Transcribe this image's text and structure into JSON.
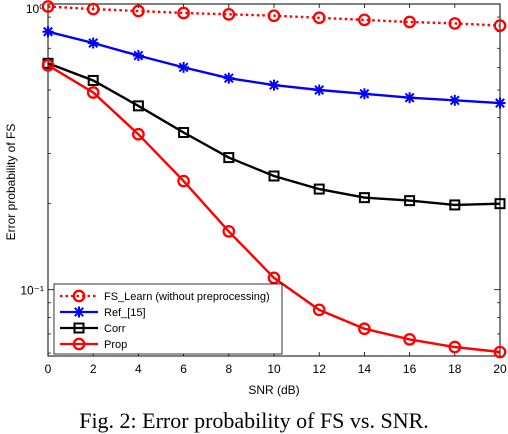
{
  "chart_data": {
    "type": "line",
    "xlabel": "SNR (dB)",
    "ylabel": "Error probability of FS",
    "x": [
      0,
      2,
      4,
      6,
      8,
      10,
      12,
      14,
      16,
      18,
      20
    ],
    "xticks": [
      "0",
      "2",
      "4",
      "6",
      "8",
      "10",
      "12",
      "14",
      "16",
      "18",
      "20"
    ],
    "yticks": [
      {
        "value": 1,
        "label": "10⁰"
      },
      {
        "value": 0.1,
        "label": "10⁻¹"
      }
    ],
    "xlim": [
      0,
      20
    ],
    "ylim": [
      0.0586,
      1.0
    ],
    "yscale": "log",
    "grid": false,
    "legend_position": "bottom-left",
    "series": [
      {
        "name": "FS_Learn (without preprocessing)",
        "color": "#ff0000",
        "marker": "circle",
        "linestyle": "dotted",
        "values": [
          0.98,
          0.96,
          0.945,
          0.93,
          0.92,
          0.91,
          0.895,
          0.88,
          0.865,
          0.855,
          0.84
        ]
      },
      {
        "name": "Ref_[15]",
        "color": "#0000ff",
        "marker": "asterisk",
        "linestyle": "solid",
        "values": [
          0.8,
          0.73,
          0.66,
          0.6,
          0.55,
          0.52,
          0.5,
          0.485,
          0.47,
          0.46,
          0.45
        ]
      },
      {
        "name": "Corr",
        "color": "#000000",
        "marker": "square",
        "linestyle": "solid",
        "values": [
          0.62,
          0.54,
          0.44,
          0.355,
          0.29,
          0.25,
          0.225,
          0.21,
          0.205,
          0.198,
          0.2
        ]
      },
      {
        "name": "Prop",
        "color": "#ff0000",
        "marker": "circle",
        "linestyle": "solid",
        "values": [
          0.61,
          0.49,
          0.35,
          0.24,
          0.16,
          0.11,
          0.085,
          0.073,
          0.067,
          0.063,
          0.0605
        ]
      }
    ]
  },
  "caption": "Fig. 2: Error probability of FS vs. SNR."
}
